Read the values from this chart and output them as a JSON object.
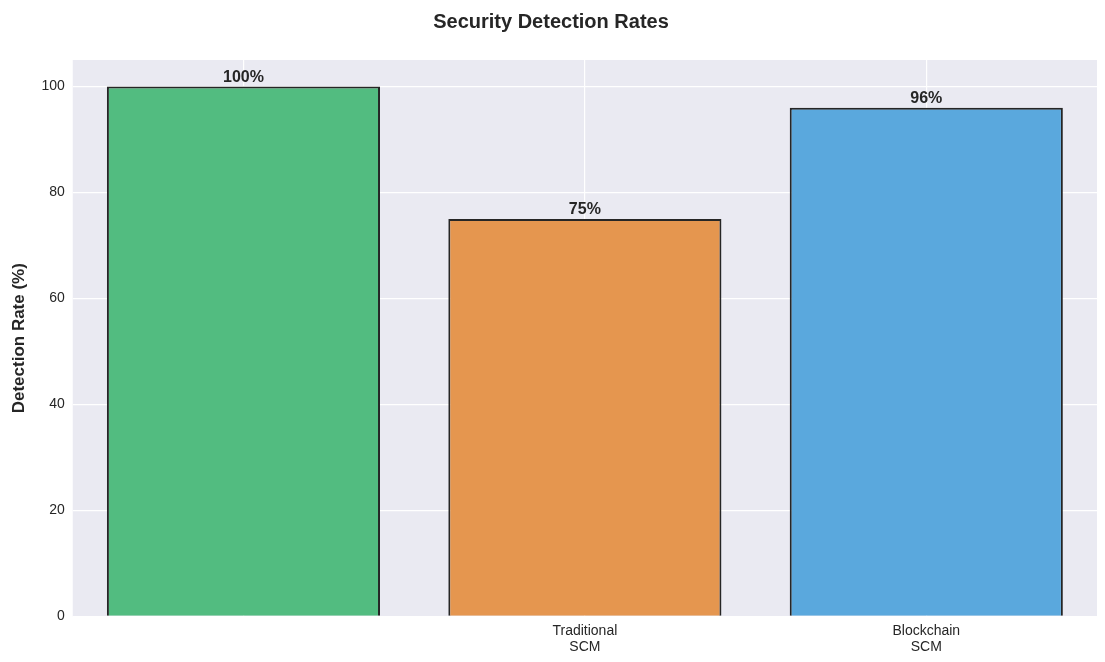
{
  "chart_data": {
    "type": "bar",
    "title": "Security Detection Rates",
    "ylabel": "Detection Rate (%)",
    "categories": [
      null,
      "Traditional\nSCM",
      "Blockchain\nSCM"
    ],
    "values": [
      100,
      75,
      96
    ],
    "colors": [
      "#52bc80",
      "#e5964f",
      "#5aa8dd"
    ],
    "value_labels": [
      "100%",
      "75%",
      "96%"
    ],
    "ylim": [
      0,
      105
    ],
    "yticks": [
      0,
      20,
      40,
      60,
      80,
      100
    ],
    "grid": true,
    "legend": false
  }
}
